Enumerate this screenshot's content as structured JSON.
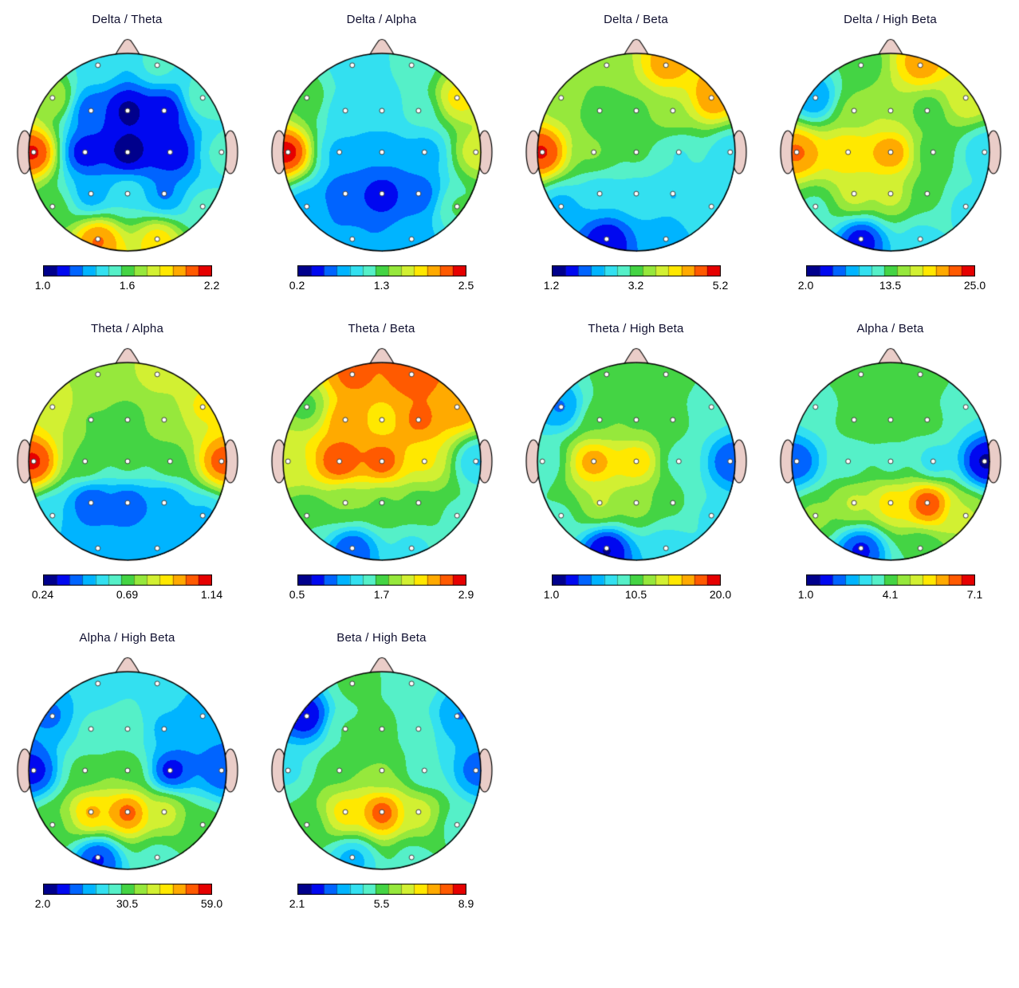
{
  "page": {
    "background": "#FFFFFF",
    "figure_type": "EEG band-ratio topographic maps"
  },
  "layout": {
    "columns": 4,
    "rows": 3,
    "colorbar_position": "bottom"
  },
  "colors": {
    "head_skin": "#EACDC8",
    "head_outline": "#000000",
    "electrode_fill": "#FFFFFF",
    "electrode_stroke": "#404040",
    "title_color": "#101030",
    "label_color": "#000000",
    "background": "#FFFFFF"
  },
  "colormap": {
    "name": "jet-discrete",
    "levels": 13,
    "stops": [
      "#00008C",
      "#0008F0",
      "#0064FF",
      "#00B4FF",
      "#33E0F0",
      "#55F0C8",
      "#44D444",
      "#96E83C",
      "#D2F032",
      "#FFE800",
      "#FFAA00",
      "#FF5A00",
      "#E60000"
    ]
  },
  "electrodes": {
    "names": [
      "Fp1",
      "Fp2",
      "F7",
      "F3",
      "Fz",
      "F4",
      "F8",
      "T3",
      "C3",
      "Cz",
      "C4",
      "T4",
      "T5",
      "P3",
      "Pz",
      "P4",
      "T6",
      "O1",
      "O2"
    ],
    "positions": [
      [
        -0.3,
        0.88
      ],
      [
        0.3,
        0.88
      ],
      [
        -0.76,
        0.55
      ],
      [
        -0.37,
        0.42
      ],
      [
        0.0,
        0.42
      ],
      [
        0.37,
        0.42
      ],
      [
        0.76,
        0.55
      ],
      [
        -0.95,
        0.0
      ],
      [
        -0.43,
        0.0
      ],
      [
        0.0,
        0.0
      ],
      [
        0.43,
        0.0
      ],
      [
        0.95,
        0.0
      ],
      [
        -0.76,
        -0.55
      ],
      [
        -0.37,
        -0.42
      ],
      [
        0.0,
        -0.42
      ],
      [
        0.37,
        -0.42
      ],
      [
        0.76,
        -0.55
      ],
      [
        -0.3,
        -0.88
      ],
      [
        0.3,
        -0.88
      ]
    ]
  },
  "chart_data": [
    {
      "type": "heatmap",
      "subtype": "eeg-topomap",
      "title": "Delta / Theta",
      "range": [
        1.0,
        2.2
      ],
      "tick_labels": [
        "1.0",
        "1.6",
        "2.2"
      ],
      "values": {
        "Fp1": 1.45,
        "Fp2": 1.5,
        "F7": 1.75,
        "F3": 1.2,
        "Fz": 1.05,
        "F4": 1.1,
        "F8": 1.55,
        "T3": 2.15,
        "C3": 1.1,
        "Cz": 1.02,
        "C4": 1.08,
        "T4": 1.5,
        "T5": 1.6,
        "P3": 1.3,
        "Pz": 1.45,
        "P4": 1.25,
        "T6": 1.5,
        "O1": 2.05,
        "O2": 1.9
      }
    },
    {
      "type": "heatmap",
      "subtype": "eeg-topomap",
      "title": "Delta / Alpha",
      "range": [
        0.2,
        2.5
      ],
      "tick_labels": [
        "0.2",
        "1.3",
        "2.5"
      ],
      "values": {
        "Fp1": 1.0,
        "Fp2": 1.1,
        "F7": 1.4,
        "F3": 0.95,
        "Fz": 1.0,
        "F4": 1.15,
        "F8": 1.9,
        "T3": 2.45,
        "C3": 0.85,
        "Cz": 0.75,
        "C4": 0.8,
        "T4": 1.75,
        "T5": 0.8,
        "P3": 0.55,
        "Pz": 0.42,
        "P4": 0.6,
        "T6": 1.3,
        "O1": 0.75,
        "O2": 0.85
      }
    },
    {
      "type": "heatmap",
      "subtype": "eeg-topomap",
      "title": "Delta / Beta",
      "range": [
        1.2,
        5.2
      ],
      "tick_labels": [
        "1.2",
        "3.2",
        "5.2"
      ],
      "values": {
        "Fp1": 3.4,
        "Fp2": 4.5,
        "F7": 3.5,
        "F3": 3.2,
        "Fz": 3.3,
        "F4": 3.6,
        "F8": 4.6,
        "T3": 5.0,
        "C3": 3.4,
        "Cz": 3.1,
        "C4": 2.7,
        "T4": 2.5,
        "T5": 2.3,
        "P3": 2.5,
        "Pz": 2.6,
        "P4": 2.4,
        "T6": 2.7,
        "O1": 1.5,
        "O2": 2.3
      }
    },
    {
      "type": "heatmap",
      "subtype": "eeg-topomap",
      "title": "Delta / High Beta",
      "range": [
        2.0,
        25.0
      ],
      "tick_labels": [
        "2.0",
        "13.5",
        "25.0"
      ],
      "values": {
        "Fp1": 13,
        "Fp2": 21,
        "F7": 7,
        "F3": 15,
        "Fz": 16,
        "F4": 13,
        "F8": 18,
        "T3": 22,
        "C3": 20,
        "Cz": 22,
        "C4": 13,
        "T4": 9,
        "T5": 12,
        "P3": 17,
        "Pz": 17,
        "P4": 13,
        "T6": 10,
        "O1": 4,
        "O2": 10
      }
    },
    {
      "type": "heatmap",
      "subtype": "eeg-topomap",
      "title": "Theta / Alpha",
      "range": [
        0.24,
        1.14
      ],
      "tick_labels": [
        "0.24",
        "0.69",
        "1.14"
      ],
      "values": {
        "Fp1": 0.78,
        "Fp2": 0.82,
        "F7": 0.85,
        "F3": 0.72,
        "Fz": 0.7,
        "F4": 0.76,
        "F8": 0.88,
        "T3": 1.1,
        "C3": 0.72,
        "Cz": 0.68,
        "C4": 0.7,
        "T4": 1.05,
        "T5": 0.52,
        "P3": 0.36,
        "Pz": 0.38,
        "P4": 0.44,
        "T6": 0.5,
        "O1": 0.48,
        "O2": 0.5
      }
    },
    {
      "type": "heatmap",
      "subtype": "eeg-topomap",
      "title": "Theta / Beta",
      "range": [
        0.5,
        2.9
      ],
      "tick_labels": [
        "0.5",
        "1.7",
        "2.9"
      ],
      "values": {
        "Fp1": 2.6,
        "Fp2": 2.65,
        "F7": 1.7,
        "F3": 2.5,
        "Fz": 2.25,
        "F4": 2.6,
        "F8": 2.5,
        "T3": 2.1,
        "C3": 2.75,
        "Cz": 2.7,
        "C4": 2.2,
        "T4": 1.2,
        "T5": 1.6,
        "P3": 1.8,
        "Pz": 1.75,
        "P4": 1.7,
        "T6": 1.55,
        "O1": 0.85,
        "O2": 1.35
      }
    },
    {
      "type": "heatmap",
      "subtype": "eeg-topomap",
      "title": "Theta / High Beta",
      "range": [
        1.0,
        20.0
      ],
      "tick_labels": [
        "1.0",
        "10.5",
        "20.0"
      ],
      "values": {
        "Fp1": 10,
        "Fp2": 10.5,
        "F7": 5,
        "F3": 11,
        "Fz": 11,
        "F4": 10,
        "F8": 9,
        "T3": 8.5,
        "C3": 17,
        "Cz": 16,
        "C4": 9,
        "T4": 4,
        "T5": 9.5,
        "P3": 13,
        "Pz": 12,
        "P4": 10,
        "T6": 8,
        "O1": 2,
        "O2": 7
      }
    },
    {
      "type": "heatmap",
      "subtype": "eeg-topomap",
      "title": "Alpha / Beta",
      "range": [
        1.0,
        7.1
      ],
      "tick_labels": [
        "1.0",
        "4.1",
        "7.1"
      ],
      "values": {
        "Fp1": 4.2,
        "Fp2": 4.2,
        "F7": 3.6,
        "F3": 4.0,
        "Fz": 4.0,
        "F4": 4.0,
        "F8": 3.4,
        "T3": 2.0,
        "C3": 3.5,
        "Cz": 3.6,
        "C4": 3.0,
        "T4": 1.3,
        "T5": 4.4,
        "P3": 4.9,
        "Pz": 5.6,
        "P4": 6.8,
        "T6": 4.8,
        "O1": 1.7,
        "O2": 3.8
      }
    },
    {
      "type": "heatmap",
      "subtype": "eeg-topomap",
      "title": "Alpha / High Beta",
      "range": [
        2.0,
        59.0
      ],
      "tick_labels": [
        "2.0",
        "30.5",
        "59.0"
      ],
      "values": {
        "Fp1": 22,
        "Fp2": 24,
        "F7": 14,
        "F3": 25,
        "Fz": 27,
        "F4": 18,
        "F8": 16,
        "T3": 8,
        "C3": 30,
        "Cz": 32,
        "C4": 7,
        "T4": 12,
        "T5": 32,
        "P3": 48,
        "Pz": 54,
        "P4": 40,
        "T6": 30,
        "O1": 9,
        "O2": 26
      }
    },
    {
      "type": "heatmap",
      "subtype": "eeg-topomap",
      "title": "Beta / High Beta",
      "range": [
        2.1,
        8.9
      ],
      "tick_labels": [
        "2.1",
        "5.5",
        "8.9"
      ],
      "values": {
        "Fp1": 5.4,
        "Fp2": 5.2,
        "F7": 2.6,
        "F3": 5.3,
        "Fz": 5.4,
        "F4": 4.9,
        "F8": 3.6,
        "T3": 4.6,
        "C3": 5.6,
        "Cz": 5.8,
        "C4": 4.7,
        "T4": 3.4,
        "T5": 5.4,
        "P3": 7.2,
        "Pz": 8.4,
        "P4": 6.6,
        "T6": 5.0,
        "O1": 3.9,
        "O2": 5.0
      }
    }
  ]
}
